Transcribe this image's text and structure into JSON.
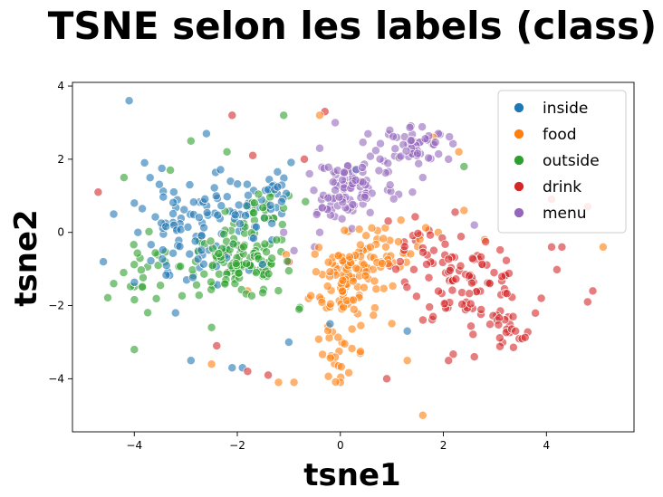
{
  "chart_data": {
    "type": "scatter",
    "title": "TSNE selon les labels (class)",
    "xlabel": "tsne1",
    "ylabel": "tsne2",
    "xlim": [
      -5.2,
      5.7
    ],
    "ylim": [
      -5.45,
      4.1
    ],
    "xticks": [
      -4,
      -2,
      0,
      2,
      4
    ],
    "yticks": [
      -4,
      -2,
      0,
      2,
      4
    ],
    "grid": false,
    "legend": "top-right",
    "series": [
      {
        "name": "inside",
        "color": "#1f77b4",
        "clusters": [
          [
            -2.2,
            0.3,
            1.0,
            1.1,
            70
          ],
          [
            -3.2,
            -0.2,
            0.7,
            1.3,
            45
          ],
          [
            -1.5,
            1.2,
            0.6,
            0.8,
            20
          ]
        ],
        "points": [
          [
            -4.1,
            3.6
          ],
          [
            -2.1,
            -3.7
          ],
          [
            -1.9,
            -3.7
          ],
          [
            -2.9,
            -3.5
          ],
          [
            -4.6,
            -0.8
          ],
          [
            -4.4,
            0.5
          ],
          [
            -3.8,
            1.9
          ],
          [
            -3.2,
            -2.2
          ],
          [
            -1.0,
            -3.0
          ],
          [
            -2.6,
            2.7
          ],
          [
            -0.2,
            -2.5
          ],
          [
            1.3,
            -2.7
          ],
          [
            0.3,
            1.7
          ],
          [
            -4.0,
            0.8
          ]
        ]
      },
      {
        "name": "food",
        "color": "#ff7f0e",
        "clusters": [
          [
            0.1,
            -1.3,
            0.55,
            1.0,
            95
          ],
          [
            0.8,
            -0.5,
            0.7,
            0.6,
            45
          ],
          [
            0.0,
            -3.3,
            0.4,
            0.5,
            22
          ]
        ],
        "points": [
          [
            1.6,
            -5.0
          ],
          [
            5.1,
            -0.4
          ],
          [
            2.4,
            0.6
          ],
          [
            2.3,
            2.2
          ],
          [
            1.9,
            0.0
          ],
          [
            -1.2,
            -4.1
          ],
          [
            -0.9,
            -4.1
          ],
          [
            0.0,
            -4.1
          ],
          [
            1.3,
            -3.5
          ],
          [
            2.8,
            -0.2
          ],
          [
            -2.5,
            -3.6
          ],
          [
            -1.8,
            -1.6
          ],
          [
            -0.4,
            3.2
          ],
          [
            1.8,
            2.6
          ]
        ]
      },
      {
        "name": "outside",
        "color": "#2ca02c",
        "clusters": [
          [
            -2.0,
            -0.9,
            0.9,
            0.75,
            120
          ],
          [
            -3.8,
            -1.3,
            0.45,
            0.9,
            22
          ],
          [
            -1.4,
            0.6,
            0.5,
            0.6,
            25
          ]
        ],
        "points": [
          [
            -1.1,
            3.2
          ],
          [
            -2.2,
            2.2
          ],
          [
            -4.4,
            -1.4
          ],
          [
            -2.9,
            2.5
          ],
          [
            -3.3,
            1.7
          ],
          [
            -1.0,
            1.0
          ],
          [
            -2.5,
            -2.6
          ],
          [
            -0.8,
            -2.1
          ],
          [
            -4.0,
            -3.2
          ],
          [
            2.4,
            1.8
          ],
          [
            -3.4,
            -0.8
          ],
          [
            -4.2,
            1.5
          ]
        ]
      },
      {
        "name": "drink",
        "color": "#d62728",
        "clusters": [
          [
            2.5,
            -1.4,
            0.9,
            0.8,
            85
          ],
          [
            1.5,
            -0.3,
            0.6,
            0.7,
            25
          ],
          [
            3.2,
            -2.8,
            0.5,
            0.5,
            22
          ]
        ],
        "points": [
          [
            4.8,
            -1.9
          ],
          [
            4.9,
            -1.6
          ],
          [
            4.3,
            -0.4
          ],
          [
            4.1,
            -0.4
          ],
          [
            4.1,
            0.9
          ],
          [
            4.8,
            0.7
          ],
          [
            -4.7,
            1.1
          ],
          [
            -2.4,
            -3.1
          ],
          [
            -2.1,
            3.2
          ],
          [
            -1.7,
            2.1
          ],
          [
            -0.3,
            3.3
          ],
          [
            -1.0,
            -0.8
          ],
          [
            -1.8,
            -3.8
          ],
          [
            -1.4,
            -3.9
          ],
          [
            0.9,
            -4.0
          ],
          [
            1.8,
            -2.3
          ],
          [
            2.6,
            -3.4
          ],
          [
            3.9,
            -1.8
          ],
          [
            -0.7,
            2.0
          ],
          [
            2.1,
            -3.5
          ]
        ]
      },
      {
        "name": "menu",
        "color": "#9467bd",
        "clusters": [
          [
            0.3,
            1.3,
            0.65,
            0.7,
            75
          ],
          [
            1.4,
            2.4,
            0.55,
            0.45,
            55
          ],
          [
            -0.2,
            0.7,
            0.4,
            0.4,
            20
          ]
        ],
        "points": [
          [
            2.6,
            0.2
          ],
          [
            1.4,
            1.1
          ],
          [
            -0.4,
            2.3
          ],
          [
            -0.1,
            3.0
          ],
          [
            -0.4,
            0.0
          ],
          [
            1.9,
            2.7
          ],
          [
            2.1,
            2.0
          ],
          [
            -0.6,
            1.6
          ],
          [
            1.6,
            1.5
          ],
          [
            -1.1,
            0.0
          ],
          [
            -0.5,
            -0.4
          ],
          [
            -0.9,
            -0.5
          ]
        ]
      }
    ]
  }
}
